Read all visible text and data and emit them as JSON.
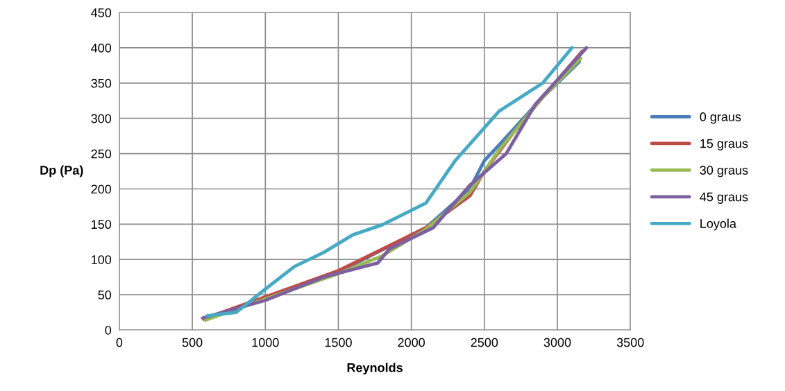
{
  "chart_data": {
    "type": "line",
    "xlabel": "Reynolds",
    "ylabel": "Dp (Pa)",
    "xlim": [
      0,
      3500
    ],
    "xticks": [
      0,
      500,
      1000,
      1500,
      2000,
      2500,
      3000,
      3500
    ],
    "ylim": [
      0,
      450
    ],
    "yticks": [
      0,
      50,
      100,
      150,
      200,
      250,
      300,
      350,
      400,
      450
    ],
    "grid": true,
    "legend": "right",
    "marker": "none",
    "line_style": "solid",
    "series": [
      {
        "name": "0 graus",
        "color": "#4a7ebb",
        "x": [
          580,
          1000,
          1500,
          2100,
          2400,
          2500,
          2600,
          2900,
          3150
        ],
        "values": [
          15,
          45,
          82,
          145,
          200,
          240,
          262,
          330,
          380
        ]
      },
      {
        "name": "15 graus",
        "color": "#be4b48",
        "x": [
          580,
          1000,
          1500,
          2100,
          2400,
          2500,
          2700,
          2900,
          3170
        ],
        "values": [
          16,
          47,
          84,
          145,
          190,
          225,
          280,
          330,
          395
        ]
      },
      {
        "name": "30 graus",
        "color": "#98b954",
        "x": [
          590,
          1000,
          1500,
          1800,
          2100,
          2400,
          2600,
          2900,
          3160
        ],
        "values": [
          14,
          44,
          80,
          105,
          143,
          195,
          255,
          330,
          385
        ]
      },
      {
        "name": "45 graus",
        "color": "#7d60a0",
        "x": [
          570,
          1000,
          1400,
          1770,
          1850,
          2150,
          2400,
          2650,
          2850,
          3200
        ],
        "values": [
          17,
          42,
          75,
          95,
          115,
          145,
          205,
          250,
          320,
          400
        ]
      },
      {
        "name": "Loyola",
        "color": "#46aac5",
        "x": [
          600,
          800,
          1000,
          1200,
          1400,
          1600,
          1800,
          2100,
          2300,
          2600,
          2900,
          3100
        ],
        "values": [
          20,
          25,
          58,
          90,
          110,
          135,
          149,
          180,
          240,
          310,
          350,
          400
        ]
      }
    ]
  }
}
